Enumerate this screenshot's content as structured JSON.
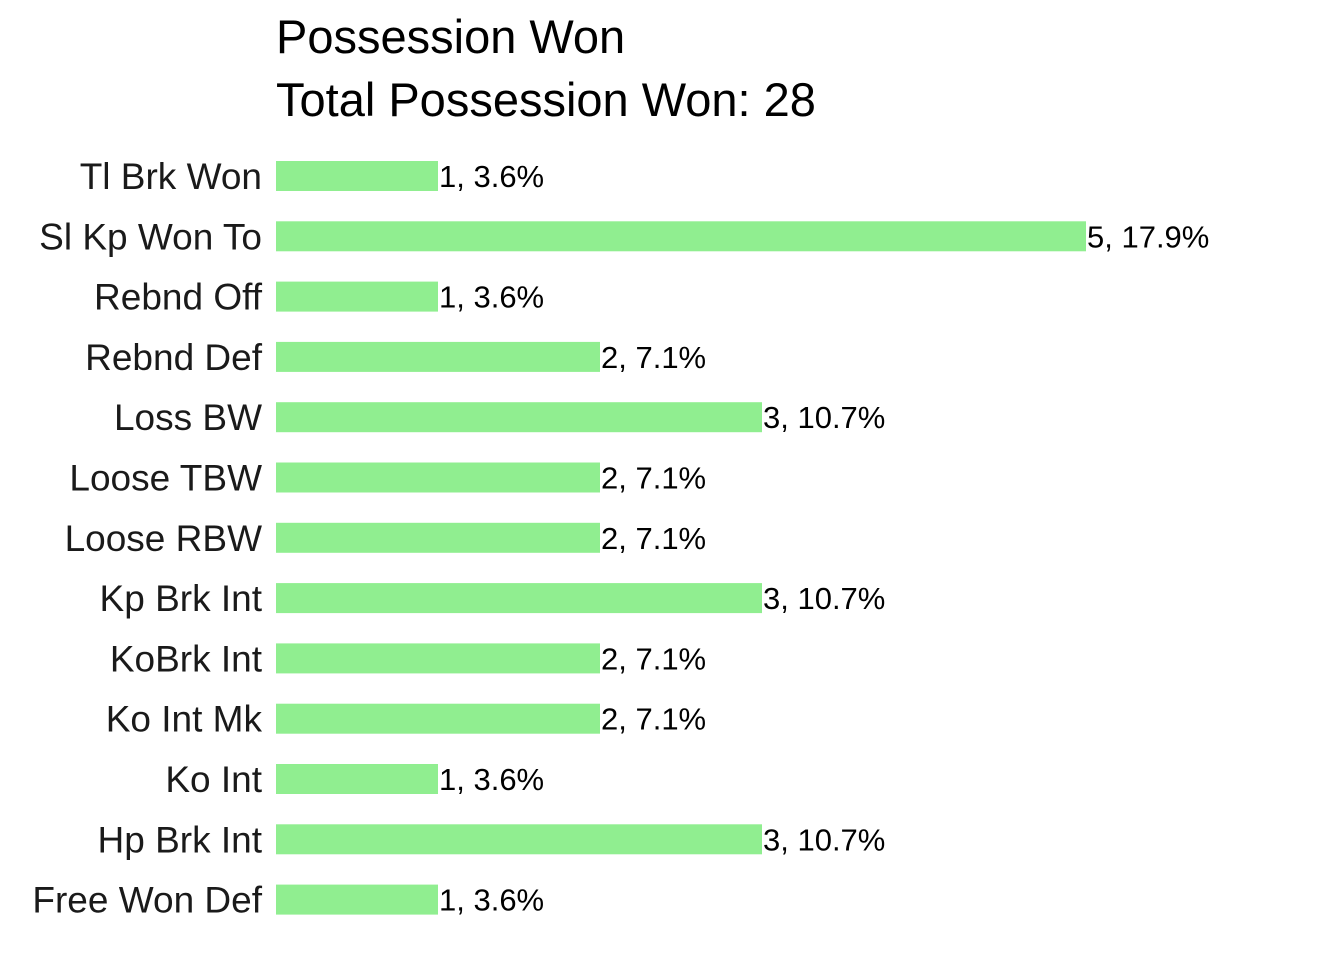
{
  "chart_data": {
    "type": "bar",
    "orientation": "horizontal",
    "title": "Possession Won",
    "subtitle": "Total Possession Won: 28",
    "categories": [
      "Tl Brk Won",
      "Sl Kp Won To",
      "Rebnd Off",
      "Rebnd Def",
      "Loss BW",
      "Loose TBW",
      "Loose RBW",
      "Kp Brk Int",
      "KoBrk Int",
      "Ko Int Mk",
      "Ko Int",
      "Hp Brk Int",
      "Free Won Def"
    ],
    "values": [
      1,
      5,
      1,
      2,
      3,
      2,
      2,
      3,
      2,
      2,
      1,
      3,
      1
    ],
    "data_labels": [
      "1, 3.6%",
      "5, 17.9%",
      "1, 3.6%",
      "2, 7.1%",
      "3, 10.7%",
      "2, 7.1%",
      "2, 7.1%",
      "3, 10.7%",
      "2, 7.1%",
      "2, 7.1%",
      "1, 3.6%",
      "3, 10.7%",
      "1, 3.6%"
    ],
    "bar_color": "#90ee90",
    "xlim": [
      0,
      5
    ],
    "grid": false,
    "legend": "none"
  }
}
